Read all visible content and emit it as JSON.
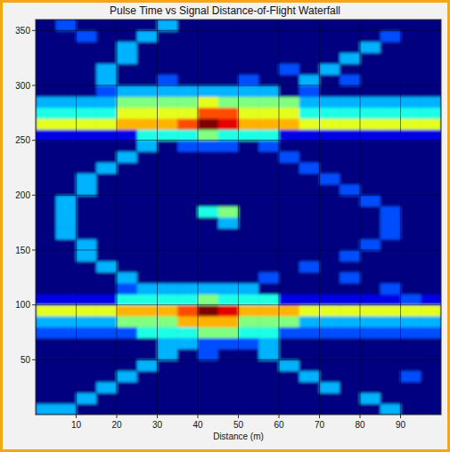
{
  "chart_data": {
    "type": "heatmap",
    "title": "Pulse Time vs Signal Distance-of-Flight Waterfall",
    "x_label": "Distance (m)",
    "xlim": [
      0,
      100
    ],
    "ylim": [
      0,
      360
    ],
    "xticks": [
      10,
      20,
      30,
      40,
      50,
      60,
      70,
      80,
      90
    ],
    "yticks": [
      50,
      100,
      150,
      200,
      250,
      300,
      350
    ],
    "grid": true,
    "zlim": [
      0,
      10
    ],
    "x_bins": [
      0,
      5,
      10,
      15,
      20,
      25,
      30,
      35,
      40,
      45,
      50,
      55,
      60,
      65,
      70,
      75,
      80,
      85,
      90,
      95,
      100
    ],
    "y_bins": [
      0,
      10,
      20,
      30,
      40,
      50,
      60,
      70,
      80,
      90,
      100,
      110,
      120,
      130,
      140,
      150,
      160,
      170,
      180,
      190,
      200,
      210,
      220,
      230,
      240,
      250,
      260,
      270,
      280,
      290,
      300,
      310,
      320,
      330,
      340,
      350,
      360
    ],
    "cells": [
      [
        3,
        3,
        0,
        0,
        0,
        0,
        0,
        0,
        0,
        0,
        0,
        0,
        0,
        0,
        0,
        0,
        0,
        3,
        0,
        0
      ],
      [
        0,
        0,
        3,
        0,
        0,
        0,
        0,
        0,
        0,
        0,
        0,
        0,
        0,
        0,
        0,
        0,
        3,
        0,
        0,
        0
      ],
      [
        0,
        0,
        0,
        3,
        0,
        0,
        0,
        0,
        0,
        0,
        0,
        0,
        0,
        0,
        3,
        0,
        0,
        0,
        0,
        0
      ],
      [
        0,
        0,
        0,
        0,
        3,
        0,
        0,
        0,
        0,
        0,
        0,
        0,
        0,
        3,
        0,
        0,
        0,
        0,
        2,
        0
      ],
      [
        0,
        0,
        0,
        0,
        0,
        3,
        0,
        0,
        0,
        0,
        0,
        0,
        3,
        0,
        0,
        0,
        0,
        0,
        0,
        0
      ],
      [
        0,
        0,
        0,
        0,
        0,
        0,
        3,
        0,
        2,
        0,
        0,
        3,
        0,
        0,
        0,
        0,
        0,
        0,
        0,
        0
      ],
      [
        0,
        0,
        0,
        0,
        0,
        0,
        3,
        3,
        2,
        2,
        2,
        3,
        0,
        0,
        0,
        0,
        0,
        0,
        0,
        0
      ],
      [
        2,
        2,
        2,
        2,
        2,
        4,
        4,
        4,
        5,
        5,
        4,
        4,
        2,
        2,
        2,
        2,
        2,
        2,
        2,
        2
      ],
      [
        3,
        3,
        3,
        3,
        5,
        5,
        5,
        7,
        7,
        7,
        5,
        5,
        5,
        3,
        3,
        3,
        3,
        3,
        3,
        3
      ],
      [
        6,
        6,
        6,
        6,
        7,
        7,
        7,
        8,
        10,
        9,
        7,
        7,
        7,
        6,
        6,
        6,
        6,
        6,
        6,
        6
      ],
      [
        1,
        1,
        1,
        1,
        4,
        4,
        4,
        4,
        5,
        4,
        4,
        4,
        1,
        1,
        1,
        1,
        1,
        1,
        2,
        1
      ],
      [
        0,
        0,
        0,
        0,
        2,
        3,
        3,
        3,
        3,
        3,
        3,
        0,
        0,
        0,
        0,
        0,
        0,
        2,
        0,
        0
      ],
      [
        0,
        0,
        0,
        0,
        3,
        0,
        0,
        0,
        0,
        0,
        0,
        2,
        0,
        0,
        0,
        2,
        0,
        0,
        0,
        0
      ],
      [
        0,
        0,
        0,
        3,
        0,
        0,
        0,
        0,
        0,
        0,
        0,
        0,
        0,
        2,
        0,
        0,
        0,
        0,
        0,
        0
      ],
      [
        0,
        0,
        3,
        0,
        0,
        0,
        0,
        0,
        0,
        0,
        0,
        0,
        0,
        0,
        0,
        2,
        0,
        0,
        0,
        0
      ],
      [
        0,
        0,
        3,
        0,
        0,
        0,
        0,
        0,
        0,
        0,
        0,
        0,
        0,
        0,
        0,
        0,
        2,
        0,
        0,
        0
      ],
      [
        0,
        3,
        0,
        0,
        0,
        0,
        0,
        0,
        0,
        0,
        0,
        0,
        0,
        0,
        0,
        0,
        0,
        2,
        0,
        0
      ],
      [
        0,
        3,
        0,
        0,
        0,
        0,
        0,
        0,
        0,
        3,
        0,
        0,
        0,
        0,
        0,
        0,
        0,
        2,
        0,
        0
      ],
      [
        0,
        3,
        0,
        0,
        0,
        0,
        0,
        0,
        4,
        5,
        0,
        0,
        0,
        0,
        0,
        0,
        0,
        2,
        0,
        0
      ],
      [
        0,
        3,
        0,
        0,
        0,
        0,
        0,
        0,
        0,
        0,
        0,
        0,
        0,
        0,
        0,
        0,
        2,
        0,
        0,
        0
      ],
      [
        0,
        0,
        3,
        0,
        0,
        0,
        0,
        0,
        0,
        0,
        0,
        0,
        0,
        0,
        0,
        2,
        0,
        0,
        0,
        0
      ],
      [
        0,
        0,
        3,
        0,
        0,
        0,
        0,
        0,
        0,
        0,
        0,
        0,
        0,
        0,
        2,
        0,
        0,
        0,
        0,
        0
      ],
      [
        0,
        0,
        0,
        3,
        0,
        0,
        0,
        0,
        0,
        0,
        0,
        0,
        0,
        2,
        0,
        0,
        0,
        0,
        0,
        0
      ],
      [
        0,
        0,
        0,
        0,
        3,
        0,
        0,
        0,
        0,
        0,
        0,
        0,
        2,
        0,
        0,
        0,
        0,
        0,
        0,
        0
      ],
      [
        0,
        0,
        0,
        0,
        0,
        3,
        0,
        2,
        2,
        2,
        0,
        2,
        0,
        0,
        0,
        0,
        0,
        0,
        0,
        0
      ],
      [
        1,
        1,
        1,
        1,
        1,
        4,
        4,
        4,
        5,
        4,
        4,
        4,
        1,
        1,
        1,
        1,
        1,
        1,
        1,
        1
      ],
      [
        6,
        6,
        6,
        6,
        7,
        7,
        7,
        8,
        10,
        9,
        7,
        7,
        7,
        6,
        6,
        6,
        6,
        6,
        6,
        6
      ],
      [
        4,
        4,
        4,
        4,
        6,
        6,
        6,
        6,
        8,
        8,
        6,
        6,
        6,
        4,
        4,
        4,
        4,
        4,
        4,
        4
      ],
      [
        3,
        3,
        3,
        3,
        5,
        5,
        5,
        5,
        6,
        5,
        5,
        5,
        5,
        3,
        3,
        3,
        3,
        3,
        3,
        3
      ],
      [
        0,
        0,
        0,
        2,
        3,
        3,
        3,
        3,
        3,
        3,
        3,
        3,
        0,
        2,
        0,
        0,
        0,
        0,
        0,
        0
      ],
      [
        0,
        0,
        0,
        3,
        0,
        0,
        2,
        0,
        0,
        0,
        2,
        0,
        0,
        3,
        0,
        2,
        0,
        0,
        0,
        0
      ],
      [
        0,
        0,
        0,
        3,
        0,
        0,
        0,
        0,
        0,
        0,
        0,
        0,
        2,
        0,
        3,
        0,
        0,
        0,
        0,
        0
      ],
      [
        0,
        0,
        0,
        0,
        3,
        0,
        0,
        0,
        0,
        0,
        0,
        0,
        0,
        0,
        0,
        3,
        0,
        0,
        0,
        0
      ],
      [
        0,
        0,
        0,
        0,
        3,
        0,
        0,
        0,
        0,
        0,
        0,
        0,
        0,
        0,
        0,
        0,
        3,
        0,
        0,
        0
      ],
      [
        0,
        0,
        2,
        0,
        0,
        3,
        0,
        0,
        0,
        0,
        0,
        0,
        0,
        0,
        0,
        0,
        0,
        2,
        0,
        0
      ],
      [
        0,
        2,
        0,
        0,
        0,
        0,
        3,
        0,
        0,
        0,
        0,
        0,
        0,
        0,
        0,
        0,
        0,
        0,
        0,
        0
      ]
    ]
  }
}
